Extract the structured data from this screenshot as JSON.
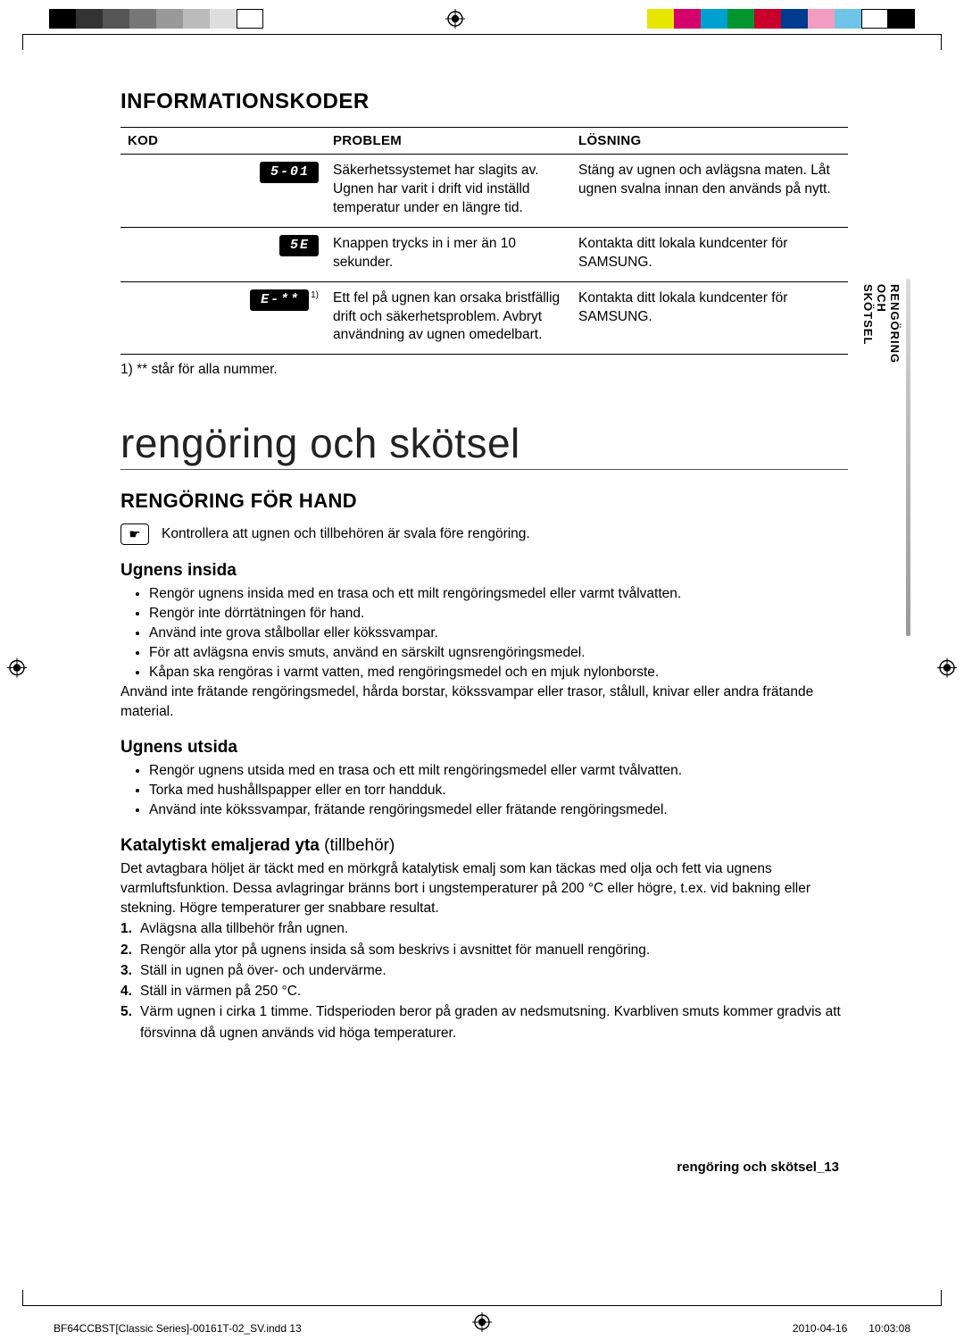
{
  "colorbar": {
    "left": [
      "#000000",
      "#333333",
      "#555555",
      "#777777",
      "#999999",
      "#bbbbbb",
      "#dddddd",
      "#ffffff"
    ],
    "right": [
      "#e6e600",
      "#d4006b",
      "#00a0d1",
      "#009530",
      "#c8002b",
      "#003b8f",
      "#f29cc0",
      "#6fc4e8",
      "#ffffff",
      "#000000"
    ]
  },
  "heading_codes": "INFORMATIONSKODER",
  "table": {
    "headers": {
      "kod": "KOD",
      "problem": "PROBLEM",
      "losning": "LÖSNING"
    },
    "rows": [
      {
        "kod": "5-01",
        "sup": "",
        "problem": "Säkerhetssystemet har slagits av. Ugnen har varit i drift vid inställd temperatur under en längre tid.",
        "losning": "Stäng av ugnen och avlägsna maten. Låt ugnen svalna innan den används på nytt."
      },
      {
        "kod": "5E",
        "sup": "",
        "problem": "Knappen trycks in i mer än 10 sekunder.",
        "losning": "Kontakta ditt lokala kundcenter för SAMSUNG."
      },
      {
        "kod": "E-**",
        "sup": "1)",
        "problem": "Ett fel på ugnen kan orsaka bristfällig drift och säkerhetsproblem. Avbryt användning av ugnen omedelbart.",
        "losning": "Kontakta ditt lokala kundcenter för SAMSUNG."
      }
    ],
    "footnote": "1) ** står för alla nummer."
  },
  "chapter": "rengöring och skötsel",
  "section2": "RENGÖRING FÖR HAND",
  "note": "Kontrollera att ugnen och tillbehören är svala före rengöring.",
  "note_icon": "☛",
  "insida": {
    "title": "Ugnens insida",
    "bullets": [
      "Rengör ugnens insida med en trasa och ett milt rengöringsmedel eller varmt tvålvatten.",
      "Rengör inte dörrtätningen för hand.",
      "Använd inte grova stålbollar eller kökssvampar.",
      "För att avlägsna envis smuts, använd en särskilt ugnsrengöringsmedel.",
      "Kåpan ska rengöras i varmt vatten, med rengöringsmedel och en mjuk nylonborste."
    ],
    "after": "Använd inte frätande rengöringsmedel, hårda borstar, kökssvampar eller trasor, stålull, knivar eller andra frätande material."
  },
  "utsida": {
    "title": "Ugnens utsida",
    "bullets": [
      "Rengör ugnens utsida med en trasa och ett milt rengöringsmedel eller varmt tvålvatten.",
      "Torka med hushållspapper eller en torr handduk.",
      "Använd inte kökssvampar, frätande rengöringsmedel eller frätande rengöringsmedel."
    ]
  },
  "katalyt": {
    "title_bold": "Katalytiskt emaljerad yta ",
    "title_light": "(tillbehör)",
    "intro": "Det avtagbara höljet är täckt med en mörkgrå katalytisk emalj som kan täckas med olja och fett via ugnens varmluftsfunktion. Dessa avlagringar bränns bort i ungstemperaturer på 200 °C eller högre, t.ex. vid bakning eller stekning. Högre temperaturer ger snabbare resultat.",
    "steps": [
      "Avlägsna alla tillbehör från ugnen.",
      "Rengör alla ytor på ugnens insida så som beskrivs i avsnittet för manuell rengöring.",
      "Ställ in ugnen på över- och undervärme.",
      "Ställ in värmen på 250 °C.",
      "Värm ugnen i cirka 1 timme. Tidsperioden beror på graden av nedsmutsning. Kvarbliven smuts kommer gradvis att försvinna då ugnen används vid höga temperaturer."
    ]
  },
  "side_tab": "RENGÖRING OCH SKÖTSEL",
  "page_footer": "rengöring och skötsel_13",
  "print_footer": {
    "file": "BF64CCBST[Classic Series]-00161T-02_SV.indd   13",
    "date": "2010-04-16",
    "time": "10:03:08"
  }
}
